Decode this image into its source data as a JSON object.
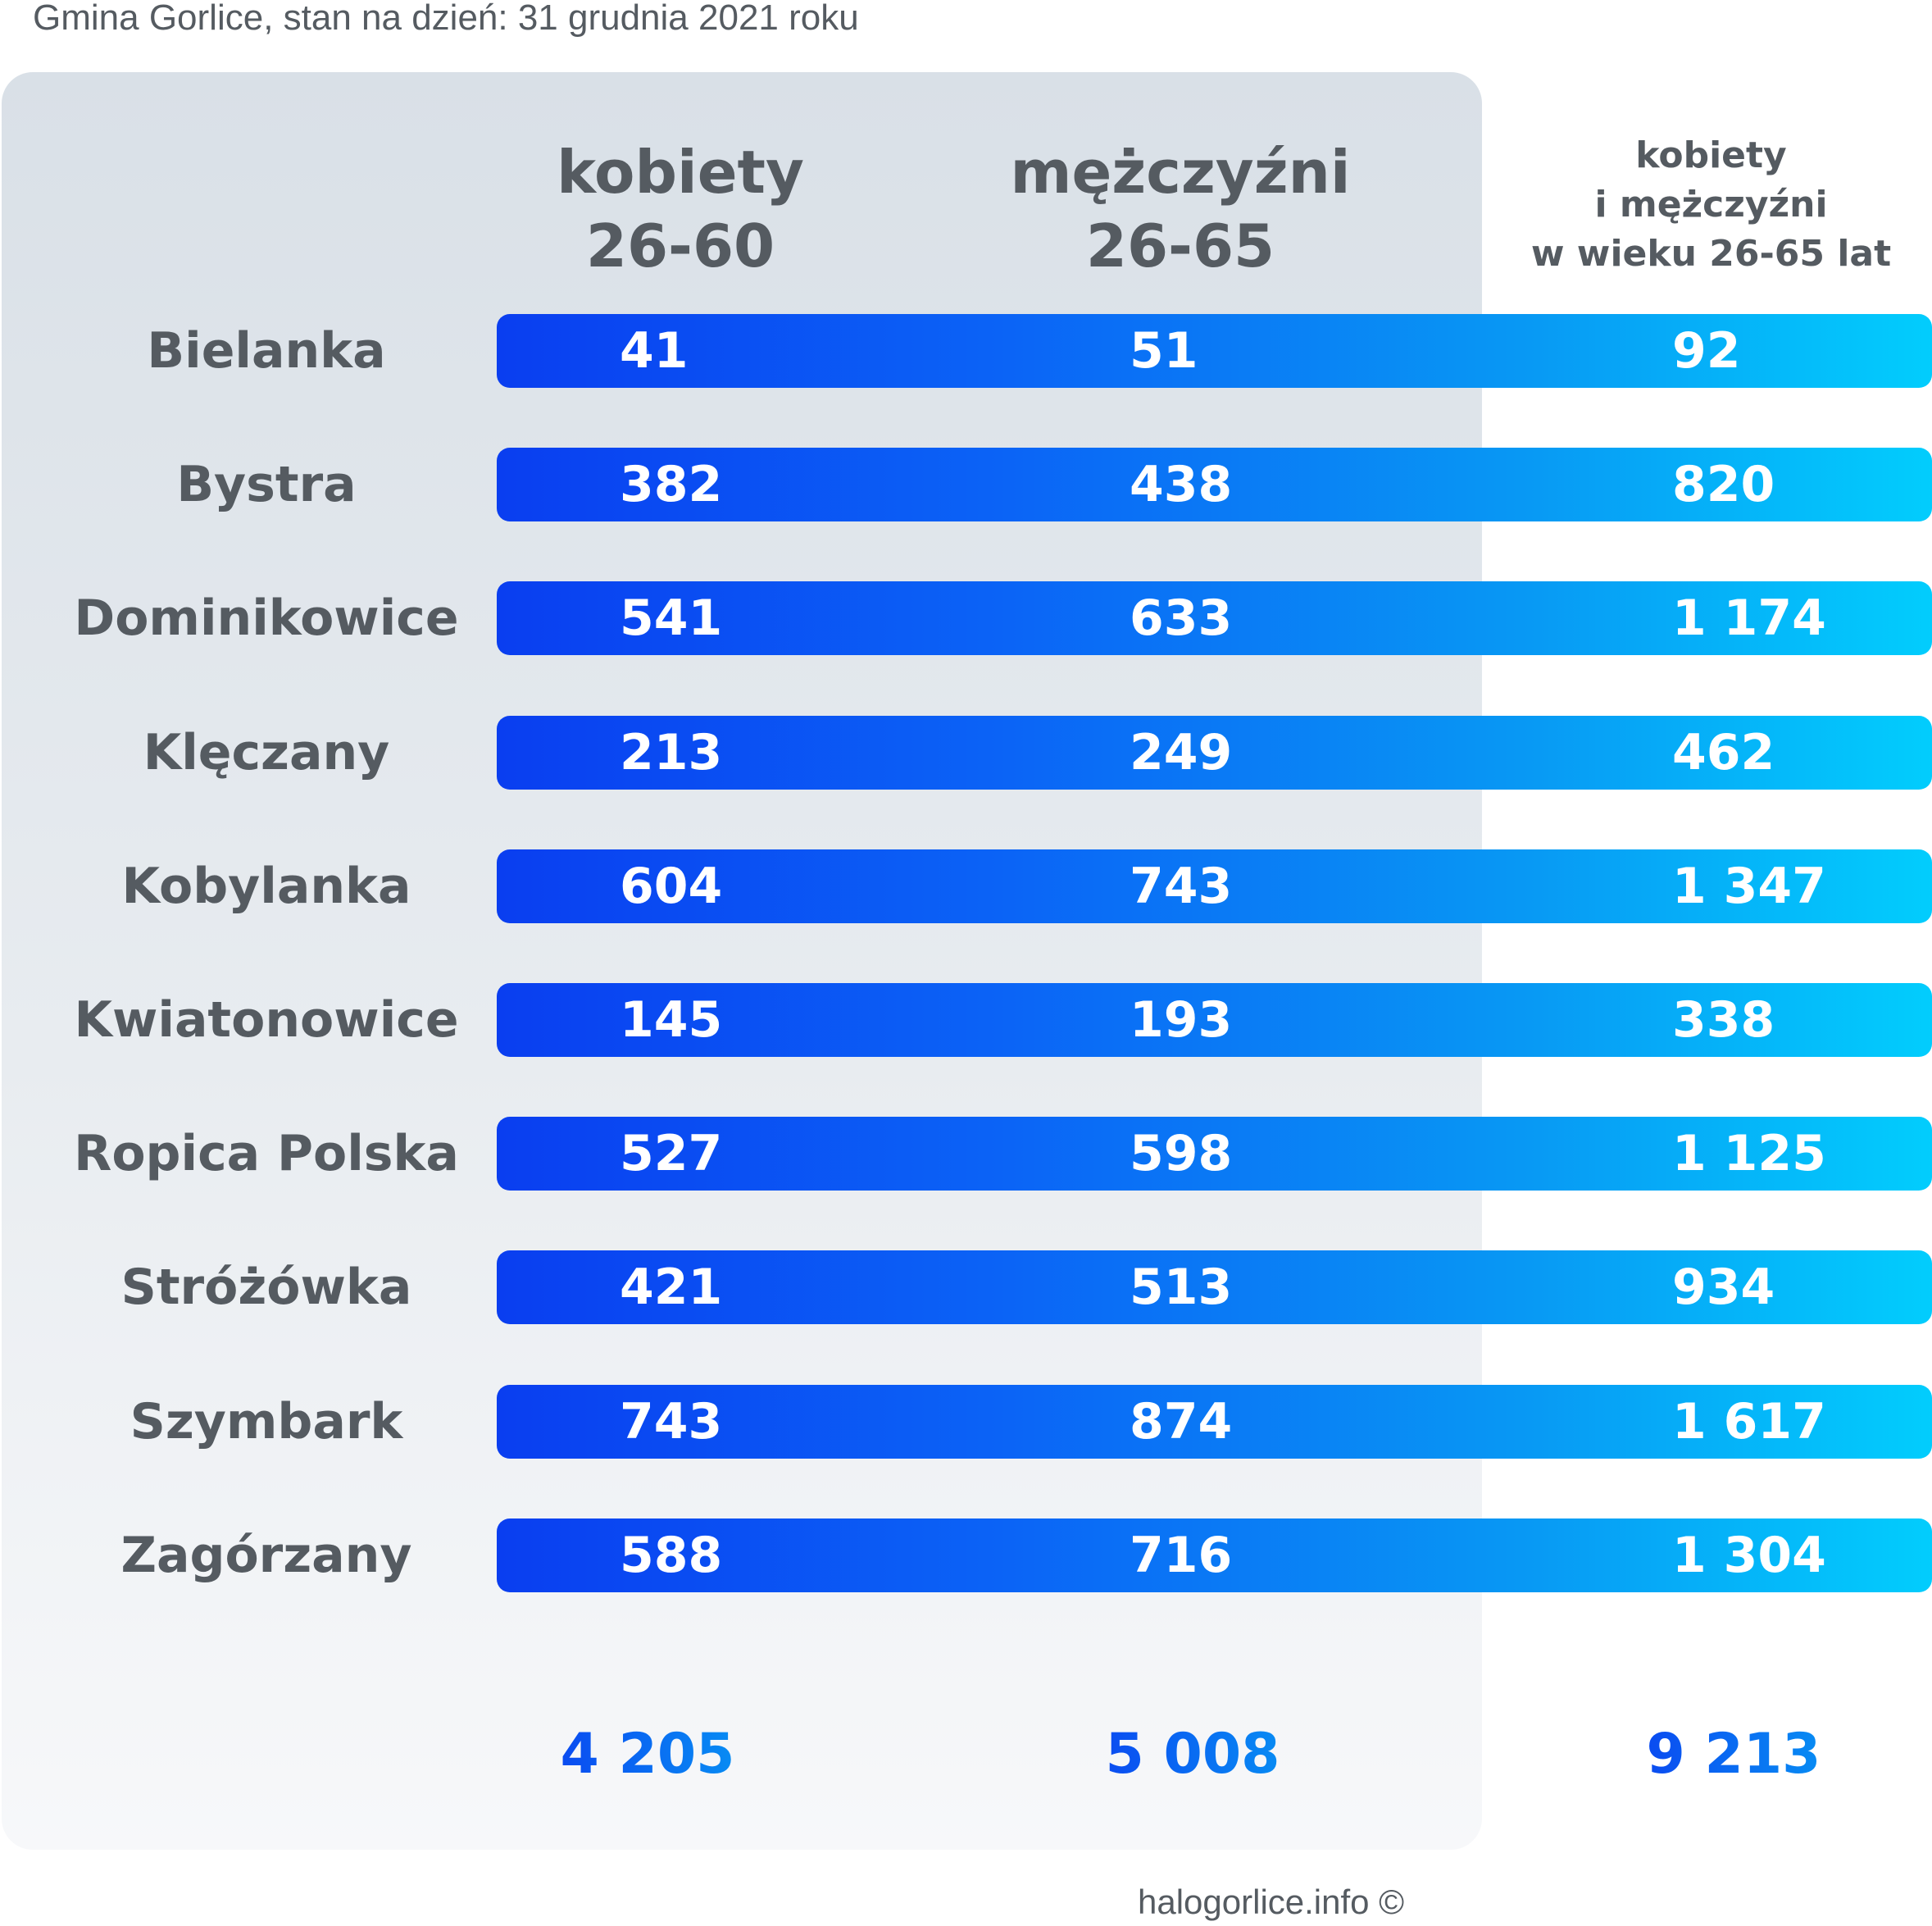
{
  "header": {
    "subtitle": "Gmina Gorlice, stan na dzień: 31 grudnia 2021 roku"
  },
  "columns": {
    "women": [
      "kobiety",
      "26-60"
    ],
    "men": [
      "mężczyźni",
      "26-65"
    ],
    "total": [
      "kobiety",
      "i mężczyźni",
      "w wieku 26-65 lat"
    ]
  },
  "chart_data": {
    "type": "table",
    "title": "",
    "categories": [
      "Bielanka",
      "Bystra",
      "Dominikowice",
      "Klęczany",
      "Kobylanka",
      "Kwiatonowice",
      "Ropica Polska",
      "Stróżówka",
      "Szymbark",
      "Zagórzany"
    ],
    "series": [
      {
        "name": "kobiety 26-60",
        "values": [
          41,
          382,
          541,
          213,
          604,
          145,
          527,
          421,
          743,
          588
        ]
      },
      {
        "name": "mężczyźni 26-65",
        "values": [
          51,
          438,
          633,
          249,
          743,
          193,
          598,
          513,
          874,
          716
        ]
      },
      {
        "name": "kobiety i mężczyźni w wieku 26-65 lat",
        "values": [
          92,
          820,
          1174,
          462,
          1347,
          338,
          1125,
          934,
          1617,
          1304
        ]
      }
    ],
    "display": {
      "women": [
        "41",
        "382",
        "541",
        "213",
        "604",
        "145",
        "527",
        "421",
        "743",
        "588"
      ],
      "men": [
        "51",
        "438",
        "633",
        "249",
        "743",
        "193",
        "598",
        "513",
        "874",
        "716"
      ],
      "total": [
        "92",
        "820",
        "1 174",
        "462",
        "1 347",
        "338",
        "1 125",
        "934",
        "1 617",
        "1 304"
      ]
    },
    "totals": {
      "women": "4 205",
      "men": "5 008",
      "all": "9 213"
    }
  },
  "footer": {
    "credit": "halogorlice.info ©"
  },
  "colors": {
    "bar_start": "#0a3ef0",
    "bar_end": "#02cdfd",
    "label_text": "#555b61",
    "panel": "#dfe4ea"
  }
}
